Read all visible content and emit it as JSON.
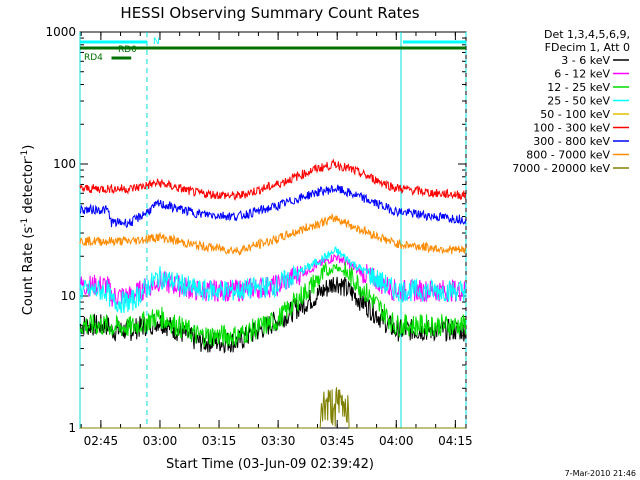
{
  "chart_data": {
    "type": "line",
    "title": "HESSI Observing Summary Count Rates",
    "xlabel": "Start Time (03-Jun-09 02:39:42)",
    "ylabel_main": "Count Rate (s",
    "ylabel_sup1": "-1",
    "ylabel_mid": " detector",
    "ylabel_sup2": "-1",
    "ylabel_end": ")",
    "yscale": "log",
    "ylim": [
      1,
      1000
    ],
    "xlim_minutes": [
      0,
      98
    ],
    "x_ticks": [
      {
        "label": "02:45",
        "minute": 5.3
      },
      {
        "label": "03:00",
        "minute": 20.3
      },
      {
        "label": "03:15",
        "minute": 35.3
      },
      {
        "label": "03:30",
        "minute": 50.3
      },
      {
        "label": "03:45",
        "minute": 65.3
      },
      {
        "label": "04:00",
        "minute": 80.3
      },
      {
        "label": "04:15",
        "minute": 95.3
      }
    ],
    "y_ticks": [
      {
        "label": "1",
        "value": 1
      },
      {
        "label": "10",
        "value": 10
      },
      {
        "label": "100",
        "value": 100
      },
      {
        "label": "1000",
        "value": 1000
      }
    ],
    "legend": {
      "header1": "Det 1,3,4,5,6,9,",
      "header2": "FDecim 1, Att 0",
      "entries": [
        {
          "label": "3 - 6 keV",
          "color": "#000000"
        },
        {
          "label": "6 - 12 keV",
          "color": "#ff00ff"
        },
        {
          "label": "12 - 25 keV",
          "color": "#00dd00"
        },
        {
          "label": "25 - 50 keV",
          "color": "#00ffff"
        },
        {
          "label": "50 - 100 keV",
          "color": "#e0c000"
        },
        {
          "label": "100 - 300 keV",
          "color": "#ff0000"
        },
        {
          "label": "300 - 800 keV",
          "color": "#0000ff"
        },
        {
          "label": "800 - 7000 keV",
          "color": "#ff8c00"
        },
        {
          "label": "7000 - 20000 keV",
          "color": "#808000"
        }
      ]
    },
    "series": [
      {
        "name": "3 - 6 keV",
        "color": "#000000",
        "minutes": [
          0,
          7,
          8,
          13,
          20,
          30,
          40,
          50,
          60,
          65,
          70,
          80,
          90,
          98
        ],
        "values": [
          6,
          6,
          5.5,
          5.5,
          6.5,
          4.5,
          4.5,
          6.5,
          10,
          13,
          10,
          5.5,
          5.5,
          5.5
        ]
      },
      {
        "name": "6 - 12 keV",
        "color": "#ff00ff",
        "minutes": [
          0,
          7,
          8,
          13,
          20,
          30,
          40,
          50,
          60,
          65,
          70,
          80,
          90,
          98
        ],
        "values": [
          12,
          12,
          10,
          10,
          13,
          11,
          11,
          12,
          17,
          20,
          16,
          11,
          11,
          11
        ]
      },
      {
        "name": "12 - 25 keV",
        "color": "#00dd00",
        "minutes": [
          0,
          7,
          8,
          13,
          20,
          30,
          40,
          50,
          60,
          65,
          70,
          80,
          90,
          98
        ],
        "values": [
          6,
          6,
          5.8,
          5.8,
          7,
          5,
          5,
          6.5,
          13,
          17,
          13,
          6,
          6,
          6
        ]
      },
      {
        "name": "25 - 50 keV",
        "color": "#00ffff",
        "minutes": [
          0,
          7,
          8,
          13,
          20,
          30,
          40,
          50,
          60,
          65,
          70,
          80,
          90,
          98
        ],
        "values": [
          11,
          11,
          9,
          9,
          14,
          11,
          11,
          12,
          18,
          22,
          17,
          11,
          11,
          11
        ]
      },
      {
        "name": "100 - 300 keV",
        "color": "#ff0000",
        "minutes": [
          0,
          7,
          8,
          13,
          20,
          30,
          40,
          50,
          60,
          65,
          70,
          80,
          90,
          98
        ],
        "values": [
          65,
          65,
          65,
          65,
          72,
          60,
          57,
          70,
          92,
          100,
          88,
          66,
          60,
          58
        ]
      },
      {
        "name": "300 - 800 keV",
        "color": "#0000ff",
        "minutes": [
          0,
          7,
          8,
          13,
          20,
          30,
          40,
          50,
          60,
          65,
          70,
          80,
          90,
          98
        ],
        "values": [
          45,
          45,
          36,
          36,
          50,
          42,
          40,
          48,
          61,
          65,
          58,
          44,
          40,
          38
        ]
      },
      {
        "name": "800 - 7000 keV",
        "color": "#ff8c00",
        "minutes": [
          0,
          7,
          8,
          13,
          20,
          30,
          40,
          50,
          60,
          65,
          70,
          80,
          90,
          98
        ],
        "values": [
          26,
          26,
          26,
          26,
          28,
          24,
          22,
          27,
          35,
          39,
          33,
          25,
          23,
          22
        ]
      },
      {
        "name": "7000 - 20000 keV",
        "color": "#808000",
        "minutes": [
          0,
          60,
          61,
          61.2,
          68,
          68.2,
          98
        ],
        "values": [
          1,
          1,
          1,
          2,
          2,
          1,
          1
        ]
      }
    ],
    "status_bars": [
      {
        "label": "N",
        "color": "#00ffff",
        "segments": [
          [
            0,
            17
          ],
          [
            82,
            98
          ]
        ]
      },
      {
        "label": "RD0",
        "color": "#007000",
        "segments": [
          [
            0,
            98
          ]
        ]
      },
      {
        "label": "RD4",
        "color": "#007000",
        "segments": [
          [
            8,
            13
          ]
        ]
      }
    ],
    "vertical_lines": [
      {
        "minute": 0,
        "style": "solid"
      },
      {
        "minute": 17,
        "style": "dashed"
      },
      {
        "minute": 81.5,
        "style": "solid"
      },
      {
        "minute": 98,
        "style": "dashed"
      }
    ],
    "timestamp": "7-Mar-2010 21:46"
  }
}
